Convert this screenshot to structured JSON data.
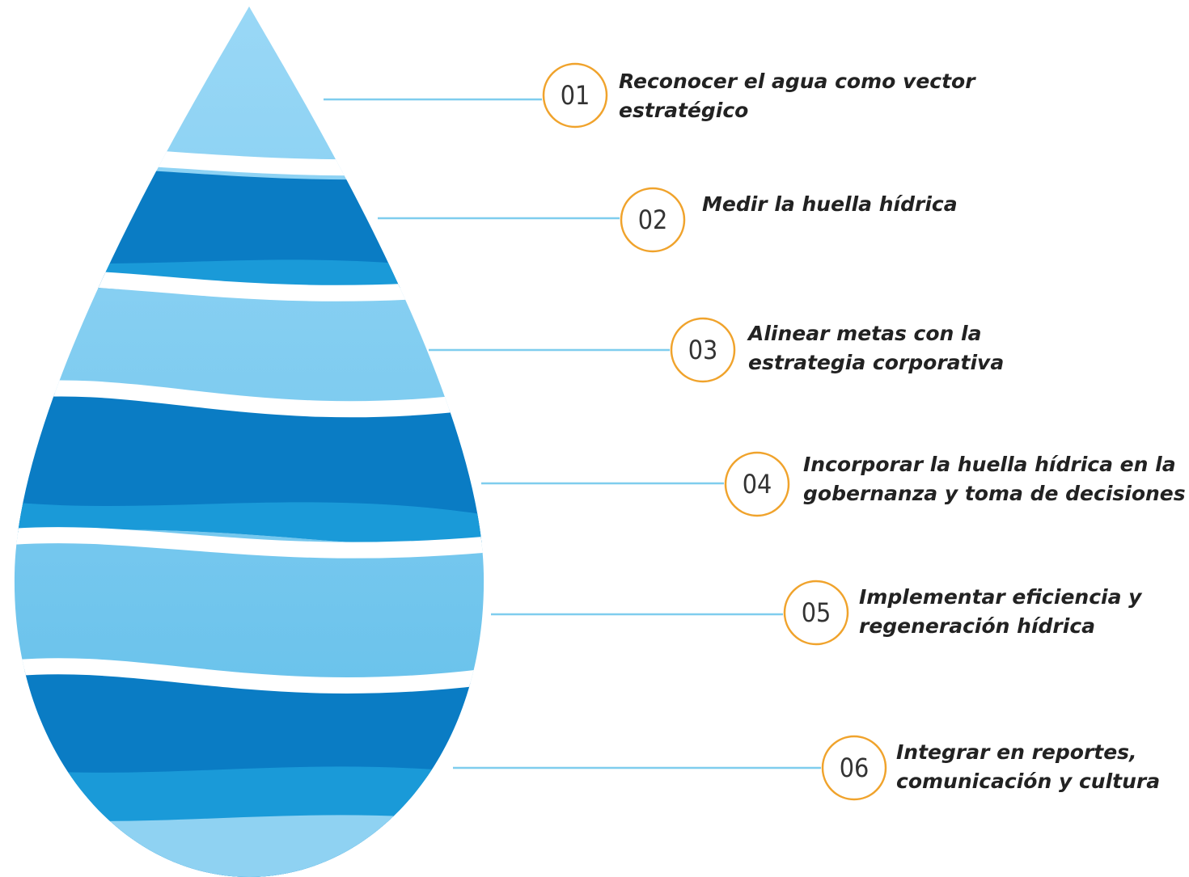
{
  "steps": [
    {
      "number": "01",
      "lines": [
        "Reconocer el agua como vector",
        "estratégico"
      ]
    },
    {
      "number": "02",
      "lines": [
        "Medir la huella hídrica"
      ]
    },
    {
      "number": "03",
      "lines": [
        "Alinear metas con la",
        "estrategia corporativa"
      ]
    },
    {
      "number": "04",
      "lines": [
        "Incorporar la huella hídrica en la",
        "gobernanza y toma de decisiones"
      ]
    },
    {
      "number": "05",
      "lines": [
        "Implementar eficiencia y",
        "regeneración hídrica"
      ]
    },
    {
      "number": "06",
      "lines": [
        "Integrar en reportes,",
        "comunicación y cultura"
      ]
    }
  ]
}
